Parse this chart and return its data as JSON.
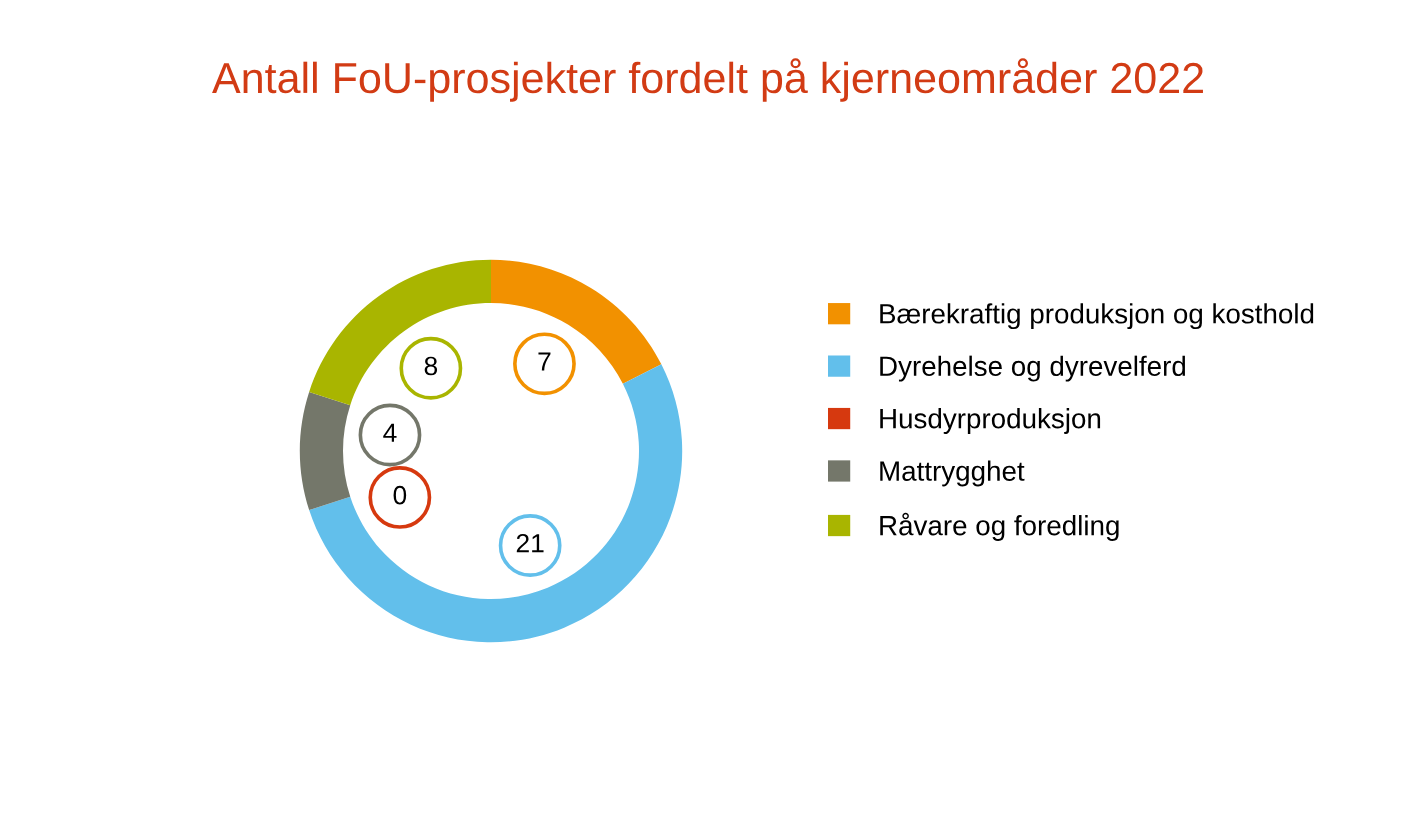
{
  "chart_data": {
    "type": "donut",
    "title": "Antall FoU-prosjekter fordelt på kjerneområder 2022",
    "categories": [
      "Bærekraftig produksjon og kosthold",
      "Dyrehelse og dyrevelferd",
      "Husdyrproduksjon",
      "Mattrygghet",
      "Råvare og foredling"
    ],
    "values": [
      7,
      21,
      0,
      4,
      8
    ],
    "colors": [
      "#f29100",
      "#62bfeb",
      "#d6390f",
      "#74776a",
      "#a9b500"
    ],
    "value_labels": [
      "7",
      "21",
      "0",
      "4",
      "8"
    ],
    "legend": "right"
  }
}
